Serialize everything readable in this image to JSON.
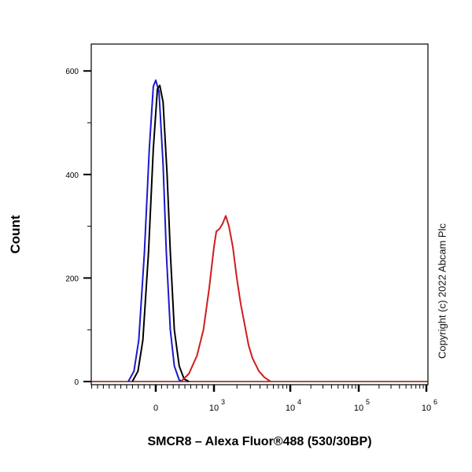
{
  "chart_data": {
    "type": "line",
    "title": "",
    "xlabel": "SMCR8 – Alexa Fluor®488 (530/30BP)",
    "ylabel": "Count",
    "x_scale": "biexponential",
    "ylim": [
      0,
      650
    ],
    "y_ticks": [
      "0",
      "200",
      "400",
      "600"
    ],
    "x_ticks": [
      {
        "base": "0",
        "exp": ""
      },
      {
        "base": "10",
        "exp": "3"
      },
      {
        "base": "10",
        "exp": "4"
      },
      {
        "base": "10",
        "exp": "5"
      },
      {
        "base": "10",
        "exp": "6"
      }
    ],
    "grid": false,
    "series": [
      {
        "color": "#1a1acc",
        "points": [
          [
            -472,
            0
          ],
          [
            -375,
            20
          ],
          [
            -292,
            80
          ],
          [
            -194,
            250
          ],
          [
            -111,
            450
          ],
          [
            -42,
            570
          ],
          [
            0,
            582
          ],
          [
            56,
            560
          ],
          [
            125,
            420
          ],
          [
            181,
            250
          ],
          [
            250,
            100
          ],
          [
            319,
            30
          ],
          [
            403,
            3
          ],
          [
            458,
            0
          ]
        ]
      },
      {
        "color": "#000000",
        "points": [
          [
            -403,
            0
          ],
          [
            -306,
            20
          ],
          [
            -222,
            80
          ],
          [
            -125,
            250
          ],
          [
            -42,
            450
          ],
          [
            28,
            565
          ],
          [
            69,
            572
          ],
          [
            125,
            540
          ],
          [
            194,
            400
          ],
          [
            250,
            250
          ],
          [
            319,
            100
          ],
          [
            403,
            30
          ],
          [
            486,
            5
          ],
          [
            569,
            0
          ]
        ]
      },
      {
        "color": "#d01c1c",
        "points": [
          [
            431,
            0
          ],
          [
            569,
            15
          ],
          [
            708,
            50
          ],
          [
            819,
            100
          ],
          [
            917,
            180
          ],
          [
            1000,
            260
          ],
          [
            1074,
            290
          ],
          [
            1181,
            295
          ],
          [
            1298,
            305
          ],
          [
            1428,
            320
          ],
          [
            1570,
            300
          ],
          [
            1767,
            260
          ],
          [
            1990,
            200
          ],
          [
            2242,
            150
          ],
          [
            2524,
            110
          ],
          [
            2842,
            70
          ],
          [
            3200,
            45
          ],
          [
            3879,
            20
          ],
          [
            4580,
            8
          ],
          [
            5530,
            0
          ]
        ]
      }
    ]
  },
  "copyright": "Copyright (c) 2022 Abcam Plc"
}
